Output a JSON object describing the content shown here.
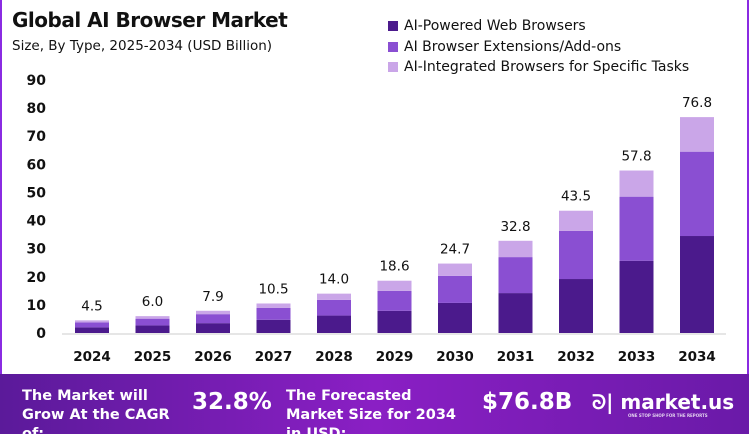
{
  "chart_data": {
    "type": "bar",
    "stacked": true,
    "title": "Global AI Browser Market",
    "subtitle": "Size, By Type, 2025-2034 (USD Billion)",
    "categories": [
      "2024",
      "2025",
      "2026",
      "2027",
      "2028",
      "2029",
      "2030",
      "2031",
      "2032",
      "2033",
      "2034"
    ],
    "series": [
      {
        "name": "AI-Powered Web Browsers",
        "color": "#4b1a8c",
        "values": [
          2.0,
          2.7,
          3.5,
          4.7,
          6.2,
          7.9,
          10.7,
          14.2,
          19.2,
          25.7,
          34.5
        ]
      },
      {
        "name": "AI Browser Extensions/Add-ons",
        "color": "#8a4fd2",
        "values": [
          1.8,
          2.4,
          3.2,
          4.2,
          5.6,
          7.1,
          9.6,
          12.8,
          17.1,
          22.8,
          30.0
        ]
      },
      {
        "name": "AI-Integrated Browsers for Specific Tasks",
        "color": "#caa6e8",
        "values": [
          0.7,
          0.9,
          1.2,
          1.6,
          2.2,
          3.6,
          4.4,
          5.8,
          7.2,
          9.3,
          12.3
        ]
      }
    ],
    "totals": [
      "4.5",
      "6.0",
      "7.9",
      "10.5",
      "14.0",
      "18.6",
      "24.7",
      "32.8",
      "43.5",
      "57.8",
      "76.8"
    ],
    "yticks": [
      "0",
      "10",
      "20",
      "30",
      "40",
      "50",
      "60",
      "70",
      "80",
      "90"
    ],
    "ylim": [
      0,
      90
    ],
    "grid": false,
    "legend": "top-right"
  },
  "footer": {
    "cagr_label": "The Market will Grow At the CAGR of:",
    "cagr_value": "32.8%",
    "forecast_label": "The Forecasted Market Size for 2034 in USD:",
    "forecast_value": "$76.8B",
    "brand": "market.us",
    "brand_tagline": "ONE STOP SHOP FOR THE REPORTS"
  }
}
